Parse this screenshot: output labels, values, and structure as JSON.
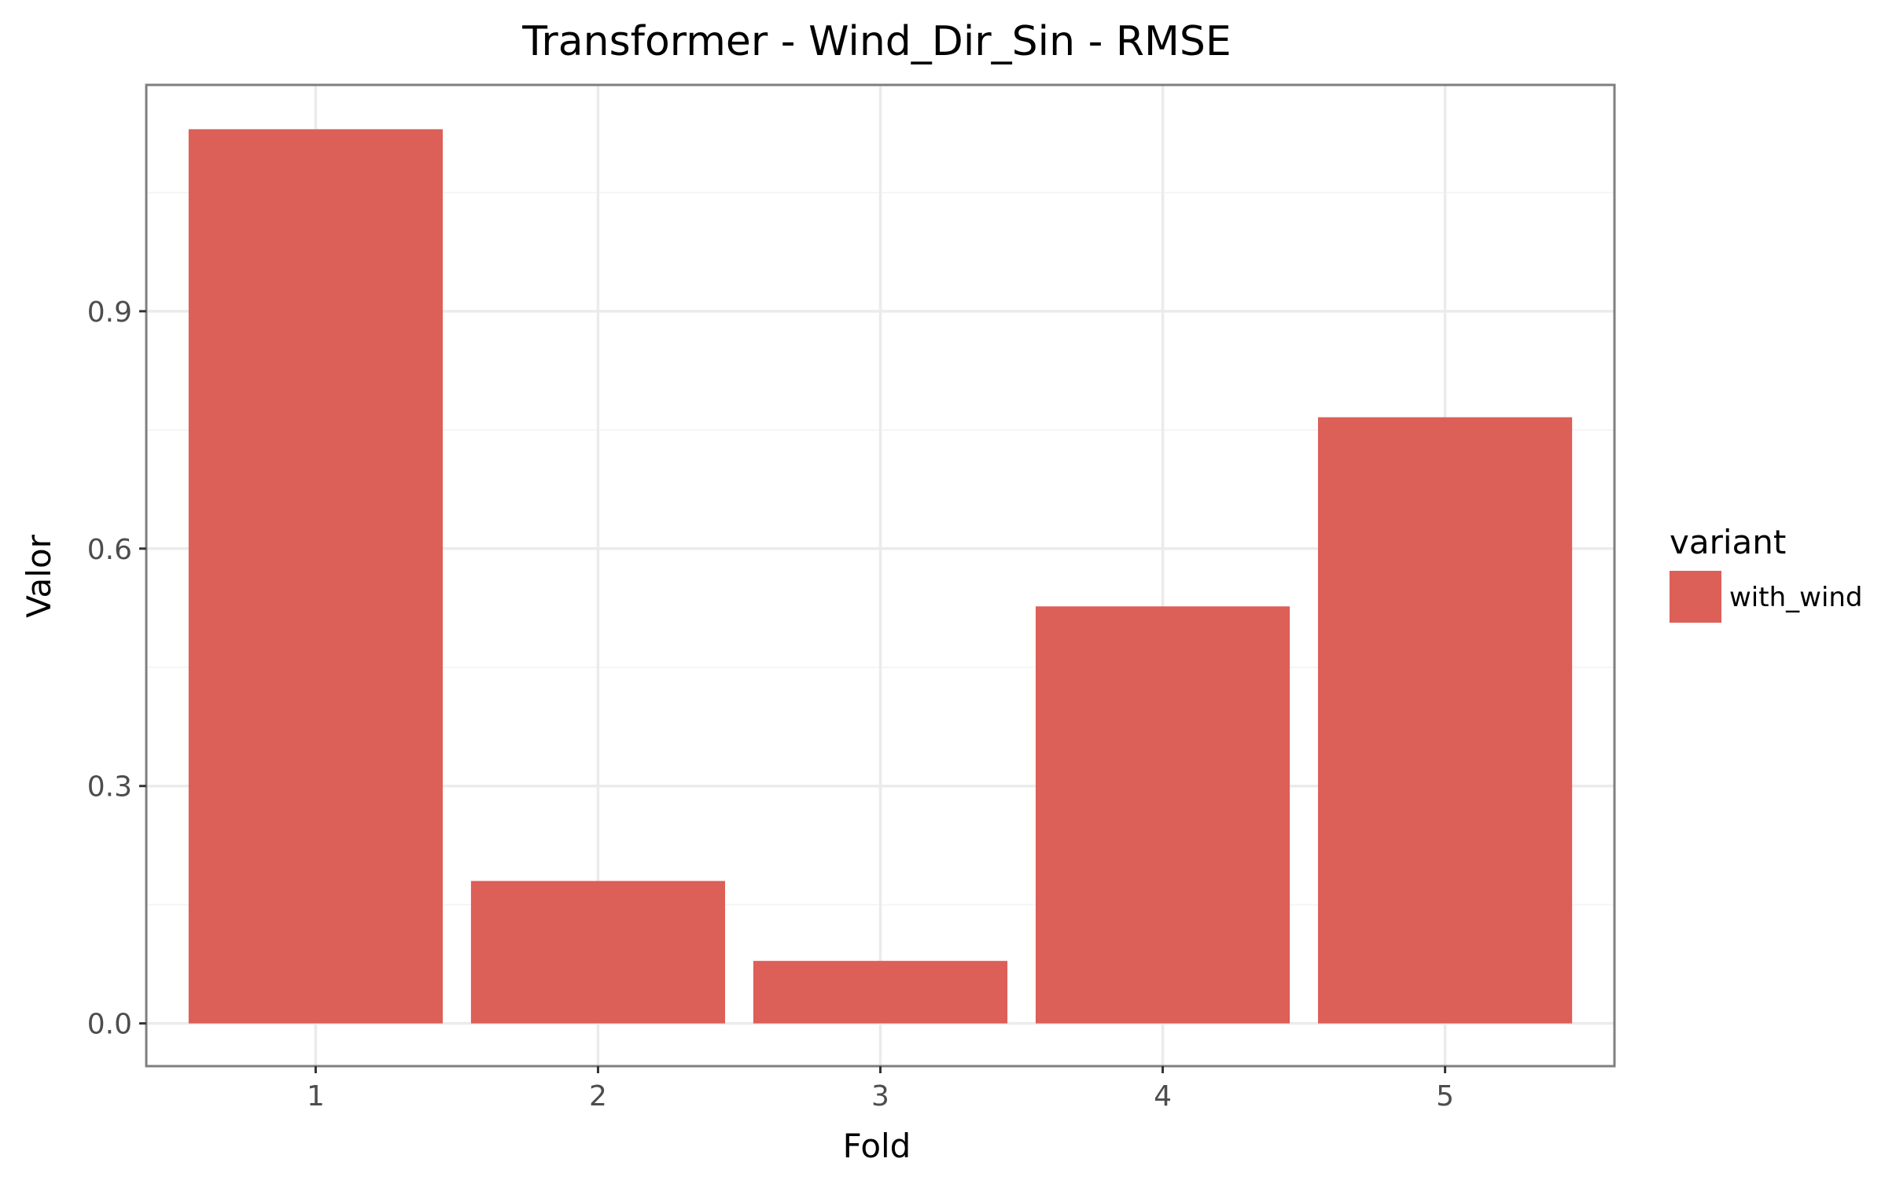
{
  "chart_data": {
    "type": "bar",
    "title": "Transformer - Wind_Dir_Sin - RMSE",
    "xlabel": "Fold",
    "ylabel": "Valor",
    "categories": [
      "1",
      "2",
      "3",
      "4",
      "5"
    ],
    "series": [
      {
        "name": "with_wind",
        "values": [
          1.13,
          0.18,
          0.079,
          0.527,
          0.766
        ]
      }
    ],
    "ylim": [
      -0.054,
      1.186
    ],
    "yticks": [
      0.0,
      0.3,
      0.6,
      0.9
    ],
    "ytick_labels": [
      "0.0",
      "0.3",
      "0.6",
      "0.9"
    ],
    "grid": true,
    "legend": {
      "title": "variant",
      "position": "right"
    },
    "colors": {
      "bar": "#dc5f58",
      "grid_major": "#ebebeb",
      "grid_minor": "#f5f5f5",
      "panel_border": "#7f7f7f"
    }
  }
}
